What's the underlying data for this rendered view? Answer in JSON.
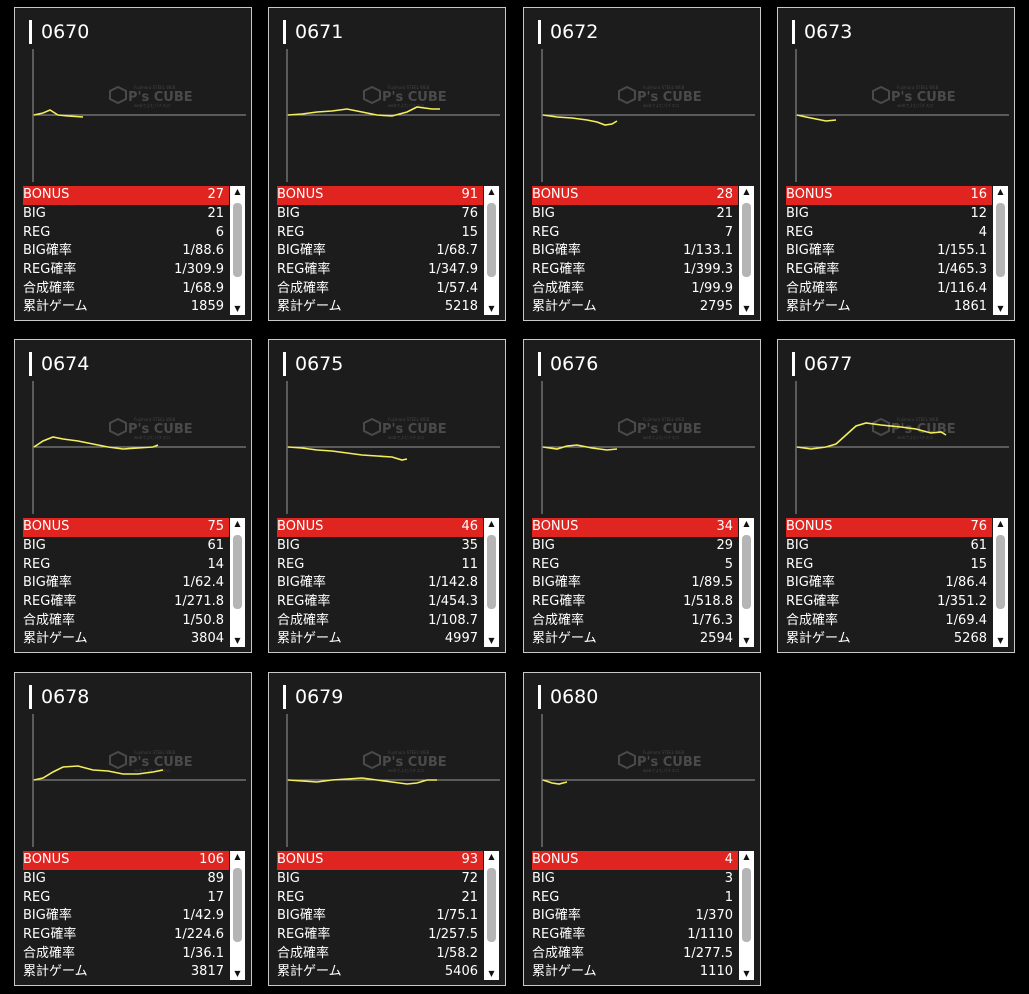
{
  "labels": {
    "bonus": "BONUS",
    "big": "BIG",
    "reg": "REG",
    "big_prob": "BIG確率",
    "reg_prob": "REG確率",
    "total_prob": "合成確率",
    "games": "累計ゲーム"
  },
  "logo": {
    "text": "P's CUBE",
    "tagline": "Fujimura STEEL WEB",
    "sub": "webでよむパチスロ"
  },
  "colors": {
    "bonus_bar": "#e02420",
    "graph_line": "#f4ee5c",
    "card_bg": "#1c1c1c"
  },
  "icons": {
    "scroll_up": "▲",
    "scroll_down": "▼"
  },
  "machines": [
    {
      "id": "0670",
      "bonus": "27",
      "big": "21",
      "reg": "6",
      "big_prob": "1/88.6",
      "reg_prob": "1/309.9",
      "total_prob": "1/68.9",
      "games": "1859"
    },
    {
      "id": "0671",
      "bonus": "91",
      "big": "76",
      "reg": "15",
      "big_prob": "1/68.7",
      "reg_prob": "1/347.9",
      "total_prob": "1/57.4",
      "games": "5218"
    },
    {
      "id": "0672",
      "bonus": "28",
      "big": "21",
      "reg": "7",
      "big_prob": "1/133.1",
      "reg_prob": "1/399.3",
      "total_prob": "1/99.9",
      "games": "2795"
    },
    {
      "id": "0673",
      "bonus": "16",
      "big": "12",
      "reg": "4",
      "big_prob": "1/155.1",
      "reg_prob": "1/465.3",
      "total_prob": "1/116.4",
      "games": "1861"
    },
    {
      "id": "0674",
      "bonus": "75",
      "big": "61",
      "reg": "14",
      "big_prob": "1/62.4",
      "reg_prob": "1/271.8",
      "total_prob": "1/50.8",
      "games": "3804"
    },
    {
      "id": "0675",
      "bonus": "46",
      "big": "35",
      "reg": "11",
      "big_prob": "1/142.8",
      "reg_prob": "1/454.3",
      "total_prob": "1/108.7",
      "games": "4997"
    },
    {
      "id": "0676",
      "bonus": "34",
      "big": "29",
      "reg": "5",
      "big_prob": "1/89.5",
      "reg_prob": "1/518.8",
      "total_prob": "1/76.3",
      "games": "2594"
    },
    {
      "id": "0677",
      "bonus": "76",
      "big": "61",
      "reg": "15",
      "big_prob": "1/86.4",
      "reg_prob": "1/351.2",
      "total_prob": "1/69.4",
      "games": "5268"
    },
    {
      "id": "0678",
      "bonus": "106",
      "big": "89",
      "reg": "17",
      "big_prob": "1/42.9",
      "reg_prob": "1/224.6",
      "total_prob": "1/36.1",
      "games": "3817"
    },
    {
      "id": "0679",
      "bonus": "93",
      "big": "72",
      "reg": "21",
      "big_prob": "1/75.1",
      "reg_prob": "1/257.5",
      "total_prob": "1/58.2",
      "games": "5406"
    },
    {
      "id": "0680",
      "bonus": "4",
      "big": "3",
      "reg": "1",
      "big_prob": "1/370",
      "reg_prob": "1/1110",
      "total_prob": "1/277.5",
      "games": "1110"
    }
  ]
}
